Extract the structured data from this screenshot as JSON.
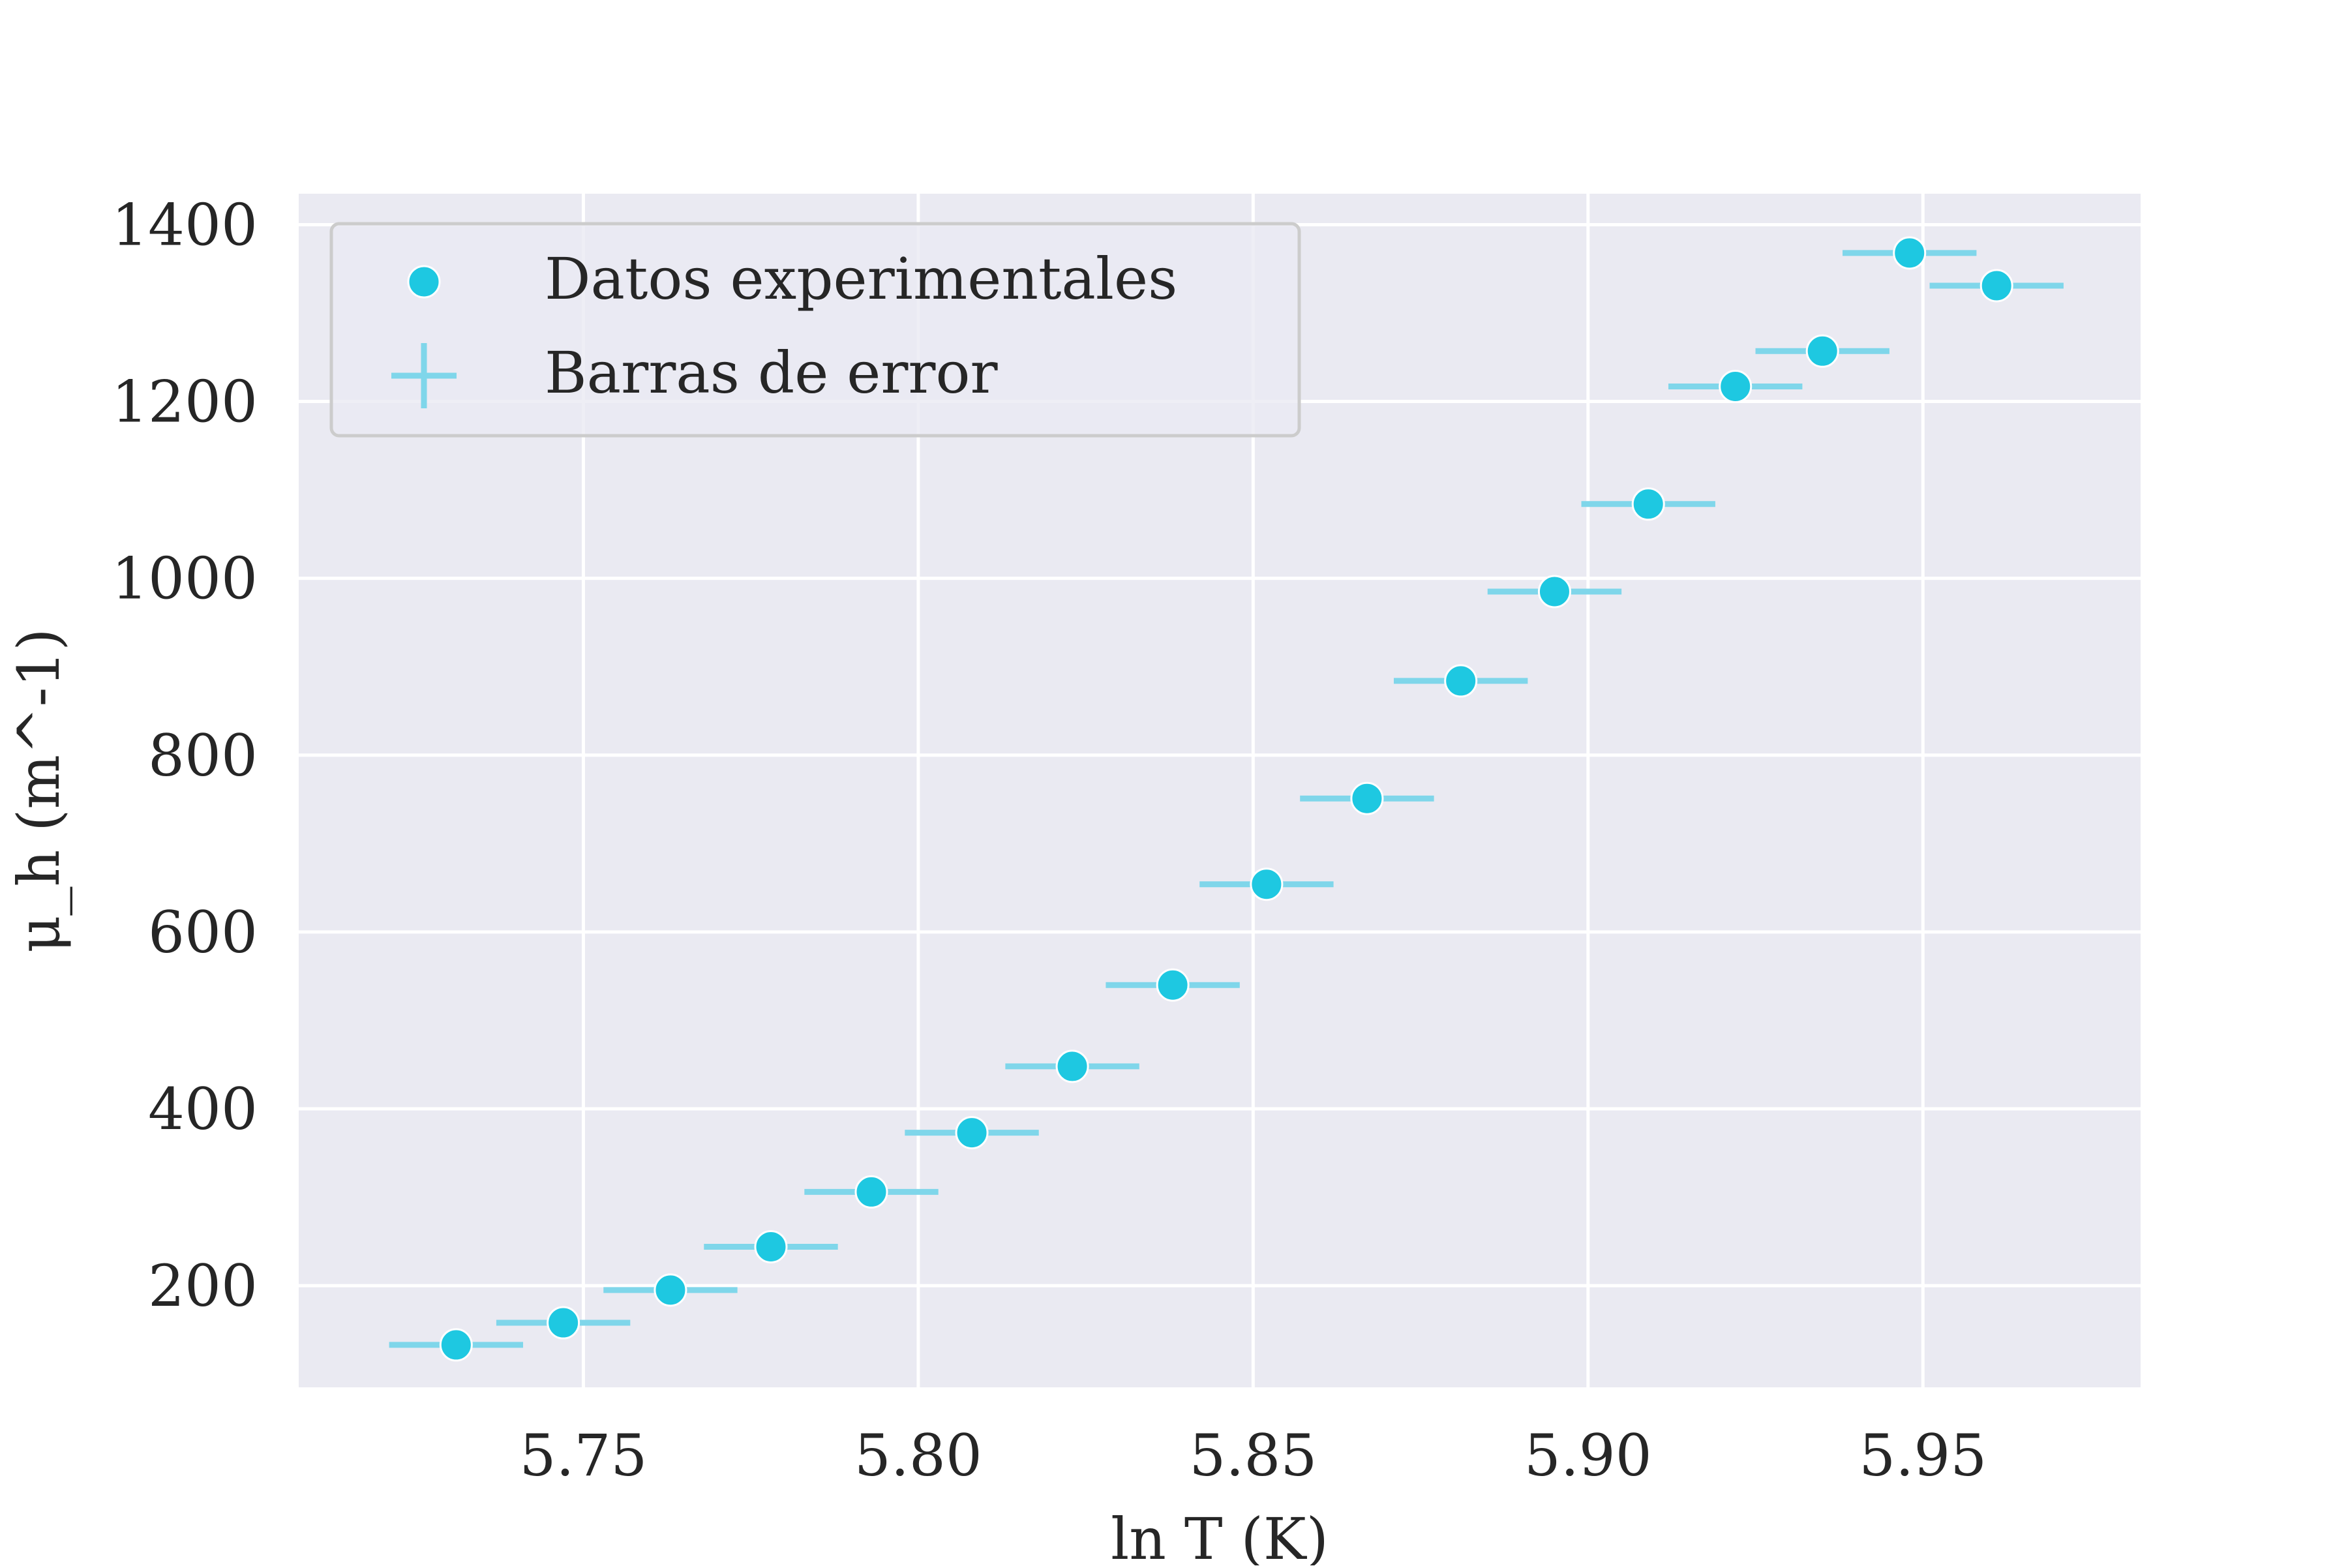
{
  "chart_data": {
    "type": "scatter",
    "title": "",
    "xlabel": "ln T (K)",
    "ylabel": "μ_h (m^-1)",
    "xlim": [
      5.7075,
      5.9825
    ],
    "ylim": [
      85,
      1435
    ],
    "xticks": [
      5.75,
      5.8,
      5.85,
      5.9,
      5.95
    ],
    "yticks": [
      200,
      400,
      600,
      800,
      1000,
      1200,
      1400
    ],
    "xtick_labels": [
      "5.75",
      "5.80",
      "5.85",
      "5.90",
      "5.95"
    ],
    "ytick_labels": [
      "200",
      "400",
      "600",
      "800",
      "1000",
      "1200",
      "1400"
    ],
    "grid": true,
    "legend_position": "top-left",
    "series": [
      {
        "name": "Datos experimentales",
        "kind": "points",
        "color": "#1ec8e1",
        "x": [
          5.731,
          5.747,
          5.763,
          5.778,
          5.793,
          5.808,
          5.823,
          5.838,
          5.852,
          5.867,
          5.881,
          5.895,
          5.909,
          5.922,
          5.935,
          5.948,
          5.961
        ],
        "y": [
          133,
          158,
          195,
          244,
          306,
          373,
          448,
          540,
          654,
          751,
          884,
          985,
          1084,
          1217,
          1257,
          1368,
          1331
        ]
      },
      {
        "name": "Barras de error",
        "kind": "errorbars",
        "color": "#7fd6ea",
        "x": [
          5.731,
          5.747,
          5.763,
          5.778,
          5.793,
          5.808,
          5.823,
          5.838,
          5.852,
          5.867,
          5.881,
          5.895,
          5.909,
          5.922,
          5.935,
          5.948,
          5.961
        ],
        "y": [
          133,
          158,
          195,
          244,
          306,
          373,
          448,
          540,
          654,
          751,
          884,
          985,
          1084,
          1217,
          1257,
          1368,
          1331
        ],
        "xerr": 0.01
      }
    ]
  }
}
